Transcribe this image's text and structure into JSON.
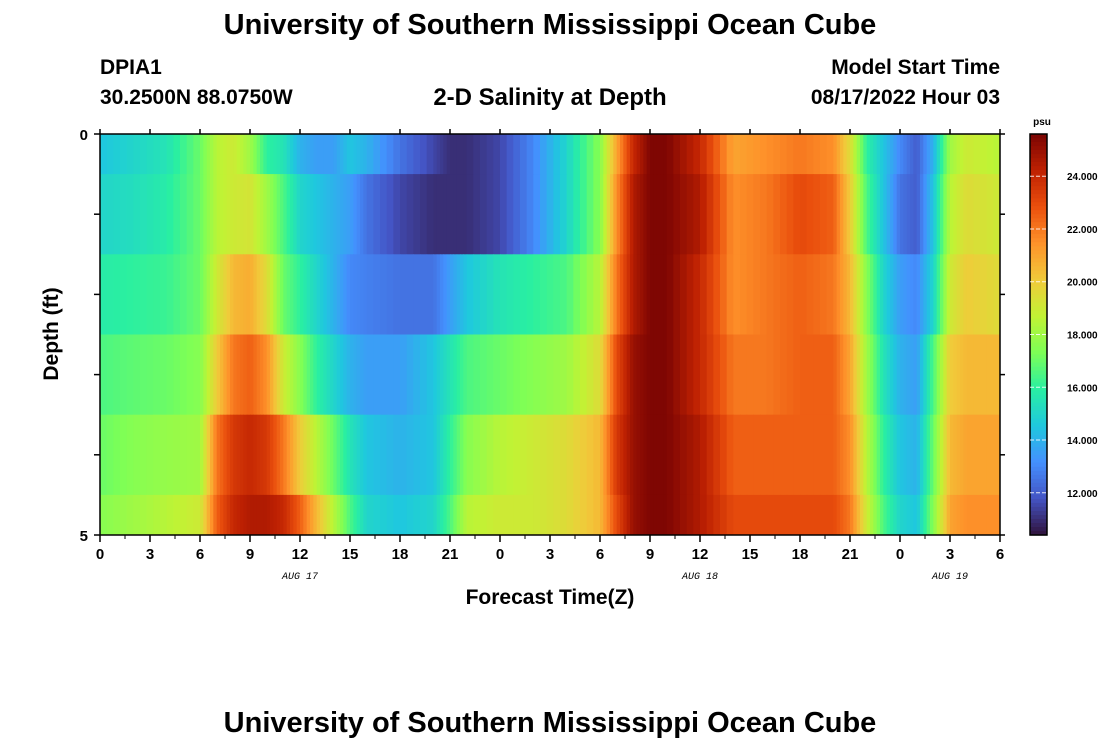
{
  "header": {
    "title": "University of Southern Mississippi Ocean Cube",
    "station_id": "DPIA1",
    "coordinates": "30.2500N  88.0750W",
    "model_start_label": "Model Start Time",
    "model_start_value": "08/17/2022 Hour 03"
  },
  "footer": {
    "title": "University of Southern Mississippi Ocean Cube"
  },
  "colors": {
    "colormap": [
      "#30123b",
      "#4454c4",
      "#4490fe",
      "#1fc8de",
      "#29efa2",
      "#7dff56",
      "#c1f334",
      "#f1ca3a",
      "#fe922a",
      "#ea4f0d",
      "#be2102",
      "#7a0403"
    ]
  },
  "chart_data": {
    "type": "heatmap",
    "title": "2-D Salinity at Depth",
    "xlabel": "Forecast Time(Z)",
    "ylabel": "Depth (ft)",
    "x_start_hour": 0,
    "x_end_hour": 54,
    "x_tick_labels": [
      "0",
      "3",
      "6",
      "9",
      "12",
      "15",
      "18",
      "21",
      "0",
      "3",
      "6",
      "9",
      "12",
      "15",
      "18",
      "21",
      "0",
      "3",
      "6"
    ],
    "date_labels": [
      {
        "label": "AUG 17",
        "hour": 12
      },
      {
        "label": "AUG 18",
        "hour": 36
      },
      {
        "label": "AUG 19",
        "hour": 51
      }
    ],
    "y_tick_labels": [
      "0",
      "5"
    ],
    "ylim": [
      0,
      5
    ],
    "colorbar": {
      "unit": "psu",
      "min": 10.4,
      "max": 25.6,
      "tick_labels": [
        "12.000",
        "14.000",
        "16.000",
        "18.000",
        "20.000",
        "22.000",
        "24.000"
      ],
      "tick_values": [
        12,
        14,
        16,
        18,
        20,
        22,
        24
      ]
    },
    "time_steps_hours": [
      0,
      2,
      4,
      6,
      7,
      8,
      9,
      10,
      11,
      12,
      13,
      14,
      15,
      16,
      18,
      20,
      21,
      22,
      24,
      26,
      28,
      30,
      31,
      32,
      33,
      34,
      36,
      38,
      40,
      42,
      44,
      45,
      46,
      47,
      48,
      49,
      50,
      51,
      52,
      54
    ],
    "depth_rows": [
      {
        "depth_ft": 0,
        "salinity": [
          14.5,
          15.0,
          15.5,
          17.0,
          18.5,
          19.0,
          18.0,
          16.0,
          15.5,
          14.0,
          13.5,
          13.5,
          14.5,
          14.0,
          12.5,
          11.5,
          11.0,
          11.0,
          11.5,
          13.0,
          15.0,
          17.5,
          21.0,
          24.0,
          25.5,
          25.5,
          24.0,
          21.0,
          21.5,
          22.0,
          21.5,
          19.5,
          16.0,
          14.5,
          13.0,
          12.0,
          14.0,
          18.0,
          19.0,
          18.5
        ]
      },
      {
        "depth_ft": 0.5,
        "salinity": [
          15.0,
          15.3,
          15.8,
          17.0,
          18.5,
          19.0,
          19.2,
          18.0,
          16.5,
          15.0,
          14.5,
          14.0,
          13.5,
          12.5,
          11.5,
          11.0,
          11.0,
          11.0,
          11.5,
          13.0,
          15.0,
          17.5,
          21.5,
          24.5,
          25.5,
          25.5,
          24.5,
          21.5,
          22.0,
          23.0,
          22.5,
          20.0,
          16.5,
          14.5,
          12.5,
          12.0,
          14.5,
          18.5,
          19.5,
          19.0
        ]
      },
      {
        "depth_ft": 1.5,
        "salinity": [
          15.8,
          16.0,
          16.2,
          17.0,
          19.0,
          20.5,
          20.8,
          19.5,
          17.0,
          16.0,
          15.0,
          14.0,
          13.0,
          12.8,
          12.5,
          12.5,
          13.5,
          14.5,
          15.5,
          16.0,
          16.5,
          18.5,
          22.0,
          24.5,
          25.5,
          25.5,
          24.0,
          21.5,
          22.0,
          22.5,
          22.0,
          20.5,
          17.5,
          15.0,
          13.5,
          13.0,
          15.0,
          19.0,
          20.0,
          19.5
        ]
      },
      {
        "depth_ft": 2.5,
        "salinity": [
          16.5,
          16.8,
          17.0,
          17.5,
          20.0,
          22.0,
          22.5,
          21.5,
          19.0,
          17.5,
          16.0,
          15.0,
          14.0,
          13.5,
          13.5,
          14.5,
          15.5,
          16.5,
          17.0,
          17.5,
          18.0,
          19.5,
          23.0,
          25.0,
          25.5,
          25.5,
          24.0,
          22.0,
          22.0,
          22.5,
          22.5,
          21.0,
          18.0,
          15.5,
          14.0,
          13.5,
          16.5,
          20.0,
          20.5,
          20.5
        ]
      },
      {
        "depth_ft": 3.5,
        "salinity": [
          17.0,
          17.5,
          17.8,
          18.0,
          22.0,
          23.5,
          24.0,
          23.5,
          22.0,
          20.0,
          18.5,
          17.0,
          15.5,
          14.5,
          14.0,
          14.5,
          16.0,
          17.5,
          18.5,
          19.0,
          19.5,
          20.5,
          23.5,
          25.0,
          25.5,
          25.5,
          24.5,
          22.5,
          22.5,
          22.5,
          22.5,
          21.5,
          18.5,
          16.0,
          14.5,
          14.0,
          17.0,
          20.5,
          21.0,
          21.0
        ]
      },
      {
        "depth_ft": 4.5,
        "salinity": [
          17.5,
          18.0,
          18.5,
          19.0,
          22.5,
          24.0,
          24.5,
          24.5,
          24.0,
          22.5,
          20.5,
          18.5,
          16.5,
          15.0,
          14.5,
          15.0,
          16.5,
          18.5,
          19.0,
          19.0,
          19.5,
          20.5,
          23.0,
          25.0,
          25.5,
          25.5,
          24.5,
          23.0,
          23.0,
          23.0,
          23.0,
          22.0,
          19.0,
          16.5,
          15.0,
          14.5,
          17.5,
          21.0,
          21.5,
          21.5
        ]
      }
    ]
  }
}
